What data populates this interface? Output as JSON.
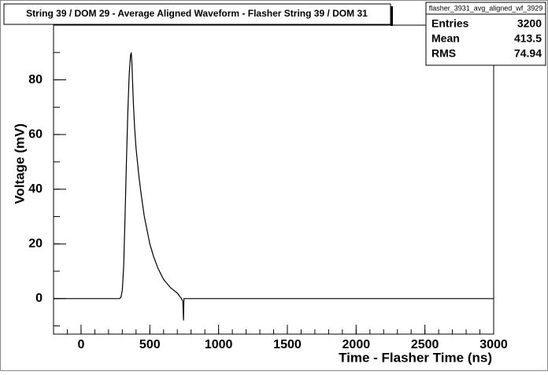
{
  "chart_data": {
    "type": "line",
    "title": "String 39 / DOM 29 - Average Aligned Waveform - Flasher String 39 / DOM 31",
    "x_label": "Time - Flasher Time (ns)",
    "y_label": "Voltage (mV)",
    "x": [
      -200,
      280,
      290,
      300,
      310,
      320,
      330,
      340,
      350,
      360,
      365,
      370,
      380,
      390,
      400,
      420,
      440,
      460,
      480,
      500,
      530,
      560,
      600,
      650,
      700,
      730,
      740,
      745,
      748,
      750,
      3000
    ],
    "values": [
      0,
      0,
      0.5,
      3,
      12,
      30,
      50,
      68,
      82,
      89,
      90,
      86,
      72,
      62,
      55,
      45,
      37,
      30,
      25,
      20,
      15,
      11,
      7,
      4,
      2,
      0,
      -1,
      -8,
      0,
      0,
      0
    ],
    "color": "#000000",
    "xlim": [
      -200,
      3000
    ],
    "xticks": [
      0,
      500,
      1000,
      1500,
      2000,
      2500,
      3000
    ],
    "ylim": [
      -13,
      100
    ],
    "yticks": [
      0,
      20,
      40,
      60,
      80
    ],
    "stats": {
      "title": "flasher_3931_avg_aligned_wf_3929",
      "rows": [
        {
          "label": "Entries",
          "value": 3200
        },
        {
          "label": "Mean",
          "value": 413.5
        },
        {
          "label": "RMS",
          "value": 74.94
        }
      ]
    }
  }
}
